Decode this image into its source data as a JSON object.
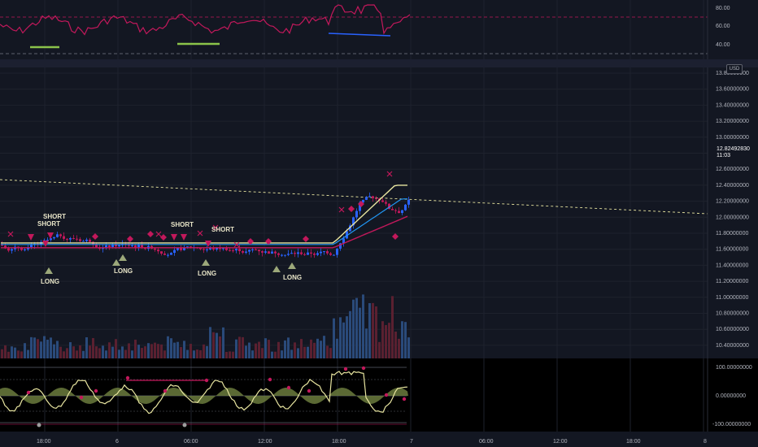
{
  "rsi_pane": {
    "scale_labels": [
      "80.00",
      "60.00",
      "40.00"
    ],
    "levels": [
      80,
      60,
      40
    ],
    "colors": {
      "line": "#c2185b",
      "bull_div": "#8bc34a",
      "bear_div": "#2962ff",
      "band": "#787b86"
    }
  },
  "main_pane": {
    "currency_badge": "USD",
    "price_scale": [
      "13.80000000",
      "13.60000000",
      "13.40000000",
      "13.20000000",
      "13.00000000",
      "12.80000000",
      "12.60000000",
      "12.40000000",
      "12.20000000",
      "12.00000000",
      "11.80000000",
      "11.60000000",
      "11.40000000",
      "11.20000000",
      "11.00000000",
      "10.80000000",
      "10.60000000",
      "10.40000000"
    ],
    "last_price": "12.82492830",
    "countdown": "11:03",
    "signals": {
      "short": [
        "SHORT",
        "SHORT",
        "SHORT",
        "SHORT"
      ],
      "long": [
        "LONG",
        "LONG",
        "LONG",
        "LONG"
      ]
    },
    "colors": {
      "up": "#2962ff",
      "down": "#c2185b",
      "ma_yellow": "#e8e5a0",
      "ma_blue": "#2196f3",
      "ma_red": "#c2185b",
      "trend": "#e8e5a0",
      "short_marker": "#c2185b",
      "long_marker": "#9ca87a"
    }
  },
  "osc_pane": {
    "scale_labels": [
      "100.00000000",
      "0.00000000",
      "-100.00000000"
    ],
    "colors": {
      "line": "#e8e5a0",
      "cloud": "#6b7b3d",
      "dots": "#c2185b"
    }
  },
  "time_axis": {
    "labels": [
      "18:00",
      "6",
      "06:00",
      "12:00",
      "18:00",
      "7",
      "06:00",
      "12:00",
      "18:00",
      "8"
    ]
  }
}
